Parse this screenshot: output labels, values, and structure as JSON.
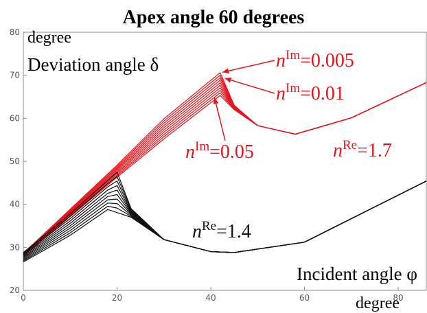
{
  "chart_data": {
    "type": "line",
    "title": "Apex angle 60 degrees",
    "ylabel_unit": "degree",
    "ylabel": "Deviation angle δ",
    "xlabel": "Incident angle φ",
    "xlabel_unit": "degree",
    "xlim": [
      0,
      86
    ],
    "ylim": [
      20,
      80
    ],
    "x_ticks": [
      0,
      20,
      40,
      60,
      80
    ],
    "y_ticks": [
      20,
      30,
      40,
      50,
      60,
      70,
      80
    ],
    "apex_angle_deg": 60,
    "grid": false,
    "families": [
      {
        "label": "nRe=1.7",
        "color": "#e8141c",
        "n_re": 1.7,
        "n_im_values": [
          0.005,
          0.01,
          0.015,
          0.02,
          0.025,
          0.03,
          0.035,
          0.04,
          0.045,
          0.05
        ],
        "points_for_nim_0_005": [
          [
            0,
            28.6
          ],
          [
            20,
            49.1
          ],
          [
            30,
            59.9
          ],
          [
            42,
            70.6
          ],
          [
            45,
            63.0
          ],
          [
            50,
            58.3
          ],
          [
            58,
            56.3
          ],
          [
            70,
            60.1
          ],
          [
            86,
            68.3
          ]
        ],
        "points_for_nim_0_05": [
          [
            0,
            28.0
          ],
          [
            20,
            46.3
          ],
          [
            30,
            55.2
          ],
          [
            42,
            65.3
          ],
          [
            45,
            62.0
          ],
          [
            50,
            58.3
          ],
          [
            58,
            56.3
          ],
          [
            70,
            60.1
          ],
          [
            86,
            68.3
          ]
        ]
      },
      {
        "label": "nRe=1.4",
        "color": "#111111",
        "n_re": 1.4,
        "n_im_values": [
          0.005,
          0.01,
          0.015,
          0.02,
          0.025,
          0.03,
          0.035,
          0.04,
          0.045,
          0.05
        ],
        "points_for_nim_0_005": [
          [
            0,
            28.8
          ],
          [
            10,
            37.8
          ],
          [
            20,
            47.5
          ],
          [
            23,
            39.0
          ],
          [
            30,
            31.8
          ],
          [
            40,
            29.0
          ],
          [
            45,
            28.8
          ],
          [
            60,
            31.2
          ],
          [
            86,
            45.4
          ]
        ],
        "points_for_nim_0_05": [
          [
            0,
            26.6
          ],
          [
            10,
            32.8
          ],
          [
            18,
            38.8
          ],
          [
            23,
            37.0
          ],
          [
            30,
            31.8
          ],
          [
            40,
            29.0
          ],
          [
            45,
            28.8
          ],
          [
            60,
            31.2
          ],
          [
            86,
            45.4
          ]
        ]
      }
    ],
    "annotations": [
      {
        "base": "n",
        "sup": "Im",
        "tail": "=0.005",
        "color": "#e8141c",
        "points_to": [
          42.5,
          70.7
        ]
      },
      {
        "base": "n",
        "sup": "Im",
        "tail": "=0.01",
        "color": "#e8141c",
        "points_to": [
          43.0,
          69.3
        ]
      },
      {
        "base": "n",
        "sup": "Im",
        "tail": "=0.05",
        "color": "#e8141c",
        "points_to": [
          40.8,
          64.8
        ]
      },
      {
        "base": "n",
        "sup": "Re",
        "tail": "=1.7",
        "color": "#e8141c"
      },
      {
        "base": "n",
        "sup": "Re",
        "tail": "=1.4",
        "color": "#111111"
      }
    ]
  }
}
